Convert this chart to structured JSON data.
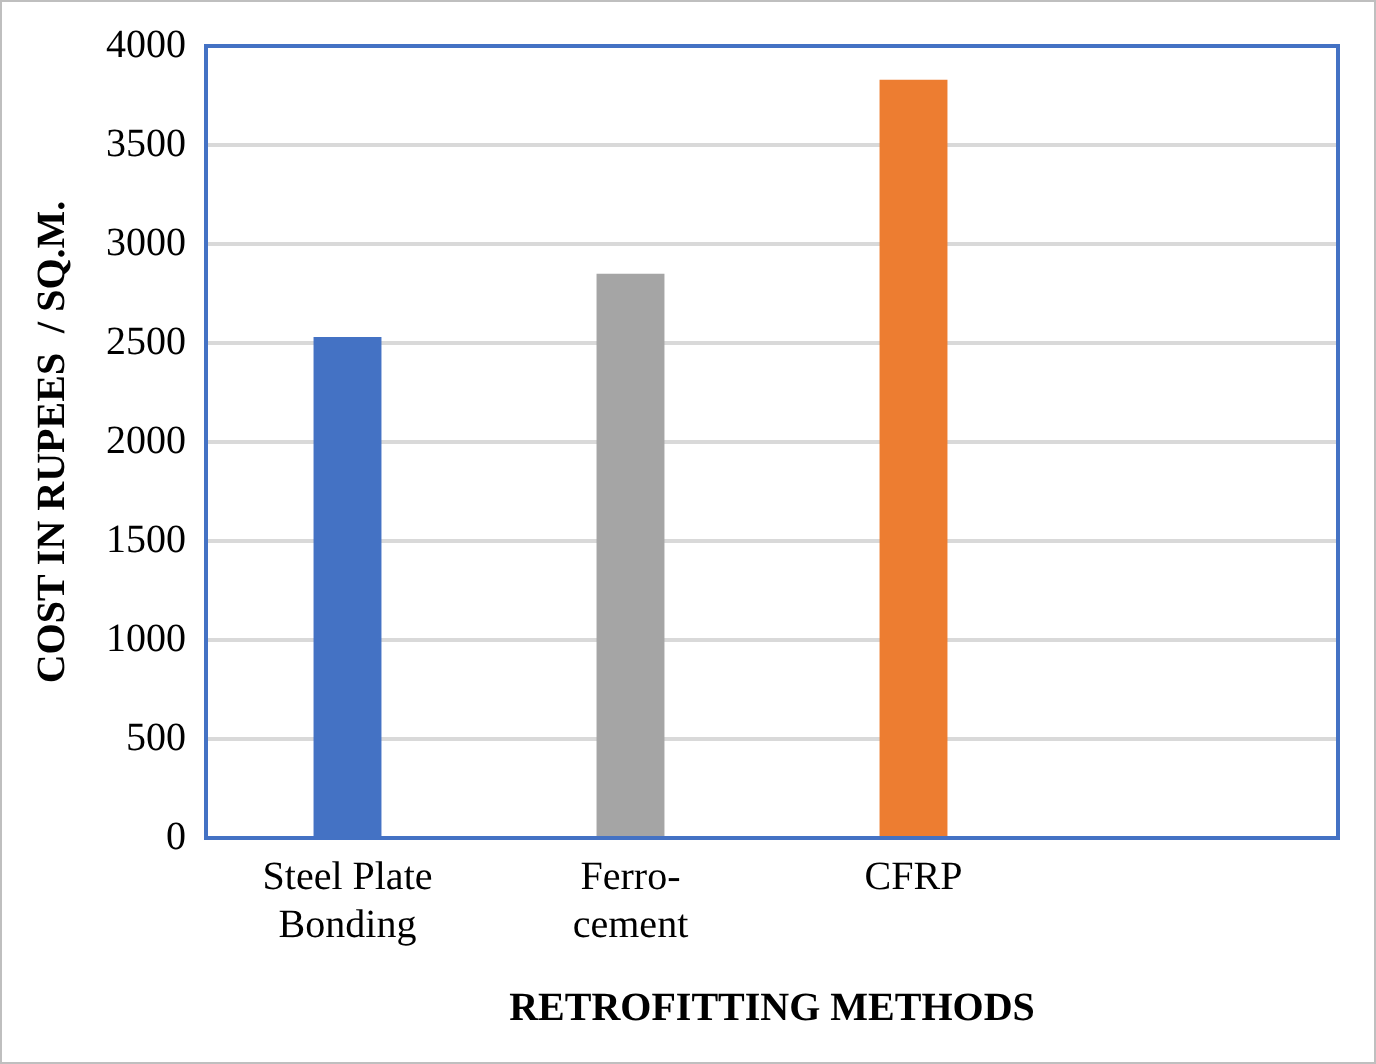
{
  "chart_data": {
    "type": "bar",
    "xlabel": "RETROFITTING METHODS",
    "ylabel": "COST IN RUPEES  / SQ.M.",
    "categories": [
      "Steel Plate\nBonding",
      "Ferro-\ncement",
      "CFRP",
      null
    ],
    "values": [
      2530,
      2850,
      3830,
      null
    ],
    "colors": [
      "#4472c4",
      "#a5a5a5",
      "#ed7d31",
      "#4472c4"
    ],
    "ylim": [
      0,
      4000
    ],
    "yticks": [
      0,
      500,
      1000,
      1500,
      2000,
      2500,
      3000,
      3500,
      4000
    ],
    "grid": "y"
  }
}
